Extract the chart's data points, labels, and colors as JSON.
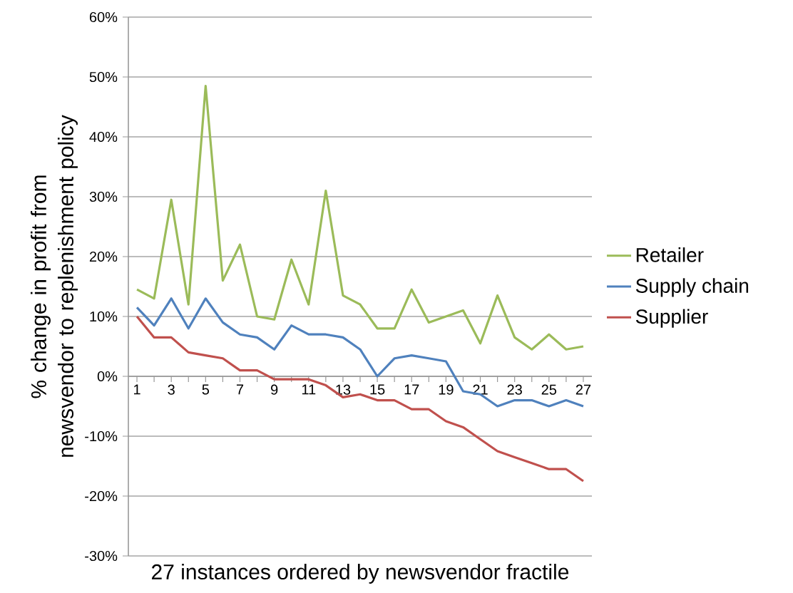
{
  "chart_data": {
    "type": "line",
    "xlabel": "27 instances ordered by newsvendor fractile",
    "ylabel": "% change in profit from newsvendor to replenishment policy",
    "categories": [
      "1",
      null,
      "3",
      null,
      "5",
      null,
      "7",
      null,
      "9",
      null,
      "11",
      null,
      "13",
      null,
      "15",
      null,
      "17",
      null,
      "19",
      null,
      "21",
      null,
      "23",
      null,
      "25",
      null,
      "27"
    ],
    "series": [
      {
        "name": "Retailer",
        "color": "#9bbb59",
        "values": [
          14.5,
          13,
          29.5,
          12,
          48.5,
          16,
          22,
          10,
          9.5,
          19.5,
          12,
          31,
          13.5,
          12,
          8,
          8,
          14.5,
          9,
          10,
          11,
          5.5,
          13.5,
          6.5,
          4.5,
          7,
          4.5,
          5
        ]
      },
      {
        "name": "Supply chain",
        "color": "#4f81bd",
        "values": [
          11.5,
          8.5,
          13,
          8,
          13,
          9,
          7,
          6.5,
          4.5,
          8.5,
          7,
          7,
          6.5,
          4.5,
          0,
          3,
          3.5,
          3,
          2.5,
          -2.5,
          -3,
          -5,
          -4,
          -4,
          -5,
          -4,
          -5
        ]
      },
      {
        "name": "Supplier",
        "color": "#c0504d",
        "values": [
          10,
          6.5,
          6.5,
          4,
          3.5,
          3,
          1,
          1,
          -0.5,
          -0.5,
          -0.5,
          -1.5,
          -3.5,
          -3,
          -4,
          -4,
          -5.5,
          -5.5,
          -7.5,
          -8.5,
          -10.5,
          -12.5,
          -13.5,
          -14.5,
          -15.5,
          -15.5,
          -17.5
        ]
      }
    ],
    "ylim": [
      -30,
      60
    ],
    "yticks": [
      {
        "value": -30,
        "label": "-30%"
      },
      {
        "value": -20,
        "label": "-20%"
      },
      {
        "value": -10,
        "label": "-10%"
      },
      {
        "value": 0,
        "label": "0%"
      },
      {
        "value": 10,
        "label": "10%"
      },
      {
        "value": 20,
        "label": "20%"
      },
      {
        "value": 30,
        "label": "30%"
      },
      {
        "value": 40,
        "label": "40%"
      },
      {
        "value": 50,
        "label": "50%"
      },
      {
        "value": 60,
        "label": "60%"
      }
    ],
    "grid": "y",
    "legend": "right",
    "marker": "none",
    "line_style": "solid"
  }
}
